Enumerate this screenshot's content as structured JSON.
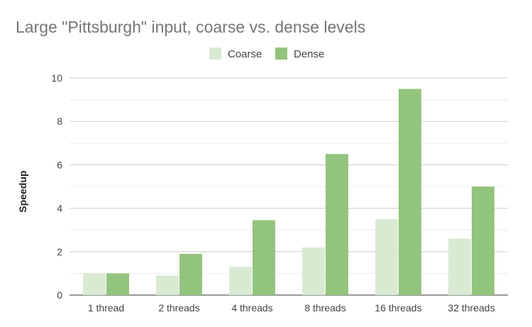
{
  "chart_data": {
    "type": "bar",
    "title": "Large \"Pittsburgh\" input, coarse vs. dense levels",
    "xlabel": "",
    "ylabel": "Speedup",
    "ylim": [
      0,
      10
    ],
    "yticks": [
      "0",
      "2",
      "4",
      "6",
      "8",
      "10"
    ],
    "grid": true,
    "legend_position": "top-center",
    "categories": [
      "1 thread",
      "2 threads",
      "4 threads",
      "8 threads",
      "16 threads",
      "32 threads"
    ],
    "series": [
      {
        "name": "Coarse",
        "color": "#d9ead3",
        "values": [
          1.0,
          0.9,
          1.3,
          2.2,
          3.5,
          2.6
        ]
      },
      {
        "name": "Dense",
        "color": "#93c47d",
        "values": [
          1.0,
          1.9,
          3.45,
          6.5,
          9.5,
          5.0
        ]
      }
    ]
  }
}
